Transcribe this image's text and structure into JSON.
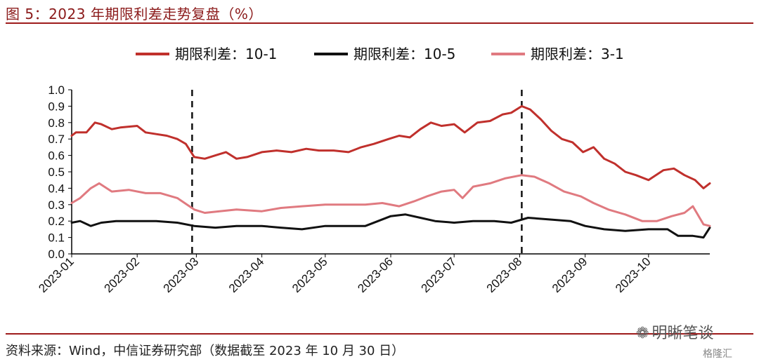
{
  "figure": {
    "title": "图 5：2023 年期限利差走势复盘（%）",
    "source": "资料来源：Wind，中信证券研究部（数据截至 2023 年 10 月 30 日）",
    "watermark": "明晰笔谈",
    "watermark_icon": "wechat-icon",
    "corner_badge": "格隆汇"
  },
  "chart_data": {
    "type": "line",
    "title": "",
    "xlabel": "",
    "ylabel": "",
    "ylim": [
      0,
      1.0
    ],
    "yticks": [
      "1.0",
      "0.9",
      "0.8",
      "0.7",
      "0.6",
      "0.5",
      "0.4",
      "0.3",
      "0.2",
      "0.1",
      "0.0"
    ],
    "xlim": [
      "2023-01-01",
      "2023-10-30"
    ],
    "xticks": [
      "2023-01",
      "2023-02",
      "2023-03",
      "2023-04",
      "2023-05",
      "2023-06",
      "2023-07",
      "2023-08",
      "2023-09",
      "2023-10"
    ],
    "grid": false,
    "legend_position": "top",
    "vertical_markers": [
      "2023-02-27",
      "2023-08-02"
    ],
    "series": [
      {
        "name": "期限利差：10-1",
        "color": "#c0302c",
        "x": [
          "2023-01-01",
          "2023-01-03",
          "2023-01-08",
          "2023-01-12",
          "2023-01-15",
          "2023-01-20",
          "2023-01-24",
          "2023-02-01",
          "2023-02-05",
          "2023-02-10",
          "2023-02-15",
          "2023-02-20",
          "2023-02-24",
          "2023-02-28",
          "2023-03-05",
          "2023-03-10",
          "2023-03-15",
          "2023-03-20",
          "2023-03-25",
          "2023-04-01",
          "2023-04-08",
          "2023-04-15",
          "2023-04-22",
          "2023-04-28",
          "2023-05-05",
          "2023-05-12",
          "2023-05-18",
          "2023-05-24",
          "2023-05-31",
          "2023-06-05",
          "2023-06-10",
          "2023-06-15",
          "2023-06-20",
          "2023-06-25",
          "2023-07-01",
          "2023-07-06",
          "2023-07-12",
          "2023-07-18",
          "2023-07-24",
          "2023-07-28",
          "2023-08-02",
          "2023-08-06",
          "2023-08-11",
          "2023-08-16",
          "2023-08-21",
          "2023-08-26",
          "2023-08-31",
          "2023-09-05",
          "2023-09-10",
          "2023-09-15",
          "2023-09-20",
          "2023-09-25",
          "2023-10-01",
          "2023-10-08",
          "2023-10-13",
          "2023-10-18",
          "2023-10-23",
          "2023-10-27",
          "2023-10-30"
        ],
        "values": [
          0.72,
          0.74,
          0.74,
          0.8,
          0.79,
          0.76,
          0.77,
          0.78,
          0.74,
          0.73,
          0.72,
          0.7,
          0.67,
          0.59,
          0.58,
          0.6,
          0.62,
          0.58,
          0.59,
          0.62,
          0.63,
          0.62,
          0.64,
          0.63,
          0.63,
          0.62,
          0.65,
          0.67,
          0.7,
          0.72,
          0.71,
          0.76,
          0.8,
          0.78,
          0.79,
          0.74,
          0.8,
          0.81,
          0.85,
          0.86,
          0.9,
          0.88,
          0.82,
          0.75,
          0.7,
          0.68,
          0.62,
          0.65,
          0.58,
          0.55,
          0.5,
          0.48,
          0.45,
          0.51,
          0.52,
          0.48,
          0.45,
          0.4,
          0.43
        ]
      },
      {
        "name": "期限利差：10-5",
        "color": "#111111",
        "x": [
          "2023-01-01",
          "2023-01-05",
          "2023-01-10",
          "2023-01-15",
          "2023-01-22",
          "2023-02-01",
          "2023-02-10",
          "2023-02-20",
          "2023-02-28",
          "2023-03-10",
          "2023-03-20",
          "2023-04-01",
          "2023-04-10",
          "2023-04-20",
          "2023-05-01",
          "2023-05-10",
          "2023-05-20",
          "2023-05-26",
          "2023-06-01",
          "2023-06-08",
          "2023-06-15",
          "2023-06-22",
          "2023-07-01",
          "2023-07-10",
          "2023-07-20",
          "2023-07-28",
          "2023-08-05",
          "2023-08-15",
          "2023-08-25",
          "2023-09-01",
          "2023-09-10",
          "2023-09-20",
          "2023-10-01",
          "2023-10-10",
          "2023-10-15",
          "2023-10-22",
          "2023-10-27",
          "2023-10-30"
        ],
        "values": [
          0.19,
          0.2,
          0.17,
          0.19,
          0.2,
          0.2,
          0.2,
          0.19,
          0.17,
          0.16,
          0.17,
          0.17,
          0.16,
          0.15,
          0.17,
          0.17,
          0.17,
          0.2,
          0.23,
          0.24,
          0.22,
          0.2,
          0.19,
          0.2,
          0.2,
          0.19,
          0.22,
          0.21,
          0.2,
          0.17,
          0.15,
          0.14,
          0.15,
          0.15,
          0.11,
          0.11,
          0.1,
          0.16
        ]
      },
      {
        "name": "期限利差：3-1",
        "color": "#e07a80",
        "x": [
          "2023-01-01",
          "2023-01-05",
          "2023-01-10",
          "2023-01-14",
          "2023-01-20",
          "2023-01-28",
          "2023-02-05",
          "2023-02-12",
          "2023-02-20",
          "2023-02-28",
          "2023-03-05",
          "2023-03-12",
          "2023-03-20",
          "2023-04-01",
          "2023-04-10",
          "2023-04-20",
          "2023-05-01",
          "2023-05-10",
          "2023-05-20",
          "2023-05-28",
          "2023-06-05",
          "2023-06-12",
          "2023-06-18",
          "2023-06-25",
          "2023-07-01",
          "2023-07-05",
          "2023-07-10",
          "2023-07-18",
          "2023-07-25",
          "2023-08-02",
          "2023-08-08",
          "2023-08-15",
          "2023-08-22",
          "2023-08-30",
          "2023-09-05",
          "2023-09-12",
          "2023-09-20",
          "2023-09-28",
          "2023-10-05",
          "2023-10-12",
          "2023-10-18",
          "2023-10-22",
          "2023-10-27",
          "2023-10-30"
        ],
        "values": [
          0.31,
          0.34,
          0.4,
          0.43,
          0.38,
          0.39,
          0.37,
          0.37,
          0.34,
          0.27,
          0.25,
          0.26,
          0.27,
          0.26,
          0.28,
          0.29,
          0.3,
          0.3,
          0.3,
          0.31,
          0.29,
          0.32,
          0.35,
          0.38,
          0.39,
          0.34,
          0.41,
          0.43,
          0.46,
          0.48,
          0.47,
          0.43,
          0.38,
          0.35,
          0.31,
          0.27,
          0.24,
          0.2,
          0.2,
          0.23,
          0.25,
          0.29,
          0.18,
          0.17
        ]
      }
    ]
  }
}
